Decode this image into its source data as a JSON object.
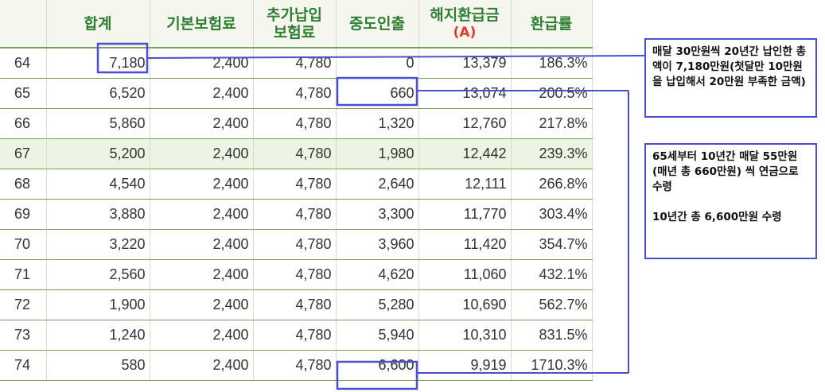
{
  "table": {
    "headers": {
      "age": "",
      "total": "합계",
      "basic": "기본보험료",
      "additional_line1": "추가납입",
      "additional_line2": "보험료",
      "withdrawal": "중도인출",
      "surrender_line1": "해지환급금",
      "surrender_line2": "(A)",
      "rate": "환급률"
    },
    "rows": [
      {
        "age": "64",
        "total": "7,180",
        "basic": "2,400",
        "additional": "4,780",
        "withdrawal": "0",
        "surrender": "13,379",
        "rate": "186.3%"
      },
      {
        "age": "65",
        "total": "6,520",
        "basic": "2,400",
        "additional": "4,780",
        "withdrawal": "660",
        "surrender": "13,074",
        "rate": "200.5%"
      },
      {
        "age": "66",
        "total": "5,860",
        "basic": "2,400",
        "additional": "4,780",
        "withdrawal": "1,320",
        "surrender": "12,760",
        "rate": "217.8%"
      },
      {
        "age": "67",
        "total": "5,200",
        "basic": "2,400",
        "additional": "4,780",
        "withdrawal": "1,980",
        "surrender": "12,442",
        "rate": "239.3%"
      },
      {
        "age": "68",
        "total": "4,540",
        "basic": "2,400",
        "additional": "4,780",
        "withdrawal": "2,640",
        "surrender": "12,111",
        "rate": "266.8%"
      },
      {
        "age": "69",
        "total": "3,880",
        "basic": "2,400",
        "additional": "4,780",
        "withdrawal": "3,300",
        "surrender": "11,770",
        "rate": "303.4%"
      },
      {
        "age": "70",
        "total": "3,220",
        "basic": "2,400",
        "additional": "4,780",
        "withdrawal": "3,960",
        "surrender": "11,420",
        "rate": "354.7%"
      },
      {
        "age": "71",
        "total": "2,560",
        "basic": "2,400",
        "additional": "4,780",
        "withdrawal": "4,620",
        "surrender": "11,060",
        "rate": "432.1%"
      },
      {
        "age": "72",
        "total": "1,900",
        "basic": "2,400",
        "additional": "4,780",
        "withdrawal": "5,280",
        "surrender": "10,690",
        "rate": "562.7%"
      },
      {
        "age": "73",
        "total": "1,240",
        "basic": "2,400",
        "additional": "4,780",
        "withdrawal": "5,940",
        "surrender": "10,310",
        "rate": "831.5%"
      },
      {
        "age": "74",
        "total": "580",
        "basic": "2,400",
        "additional": "4,780",
        "withdrawal": "6,600",
        "surrender": "9,919",
        "rate": "1710.3%"
      }
    ]
  },
  "callouts": {
    "first": "매달 30만원씩 20년간 납인한 총액이 7,180만원(첫달만 10만원을 납입해서 20만원 부족한 금액)",
    "second_line1": "65세부터 10년간 매달 55만원(매년 총 660만원) 씩 연금으로 수령",
    "second_line2": "10년간 총 6,600만원 수령"
  },
  "colors": {
    "header_text": "#2e7d32",
    "header_accent": "#e53935",
    "highlight_row": "#eef4e3",
    "annotation": "#4a4fd0",
    "row_border": "#7aa05e"
  }
}
